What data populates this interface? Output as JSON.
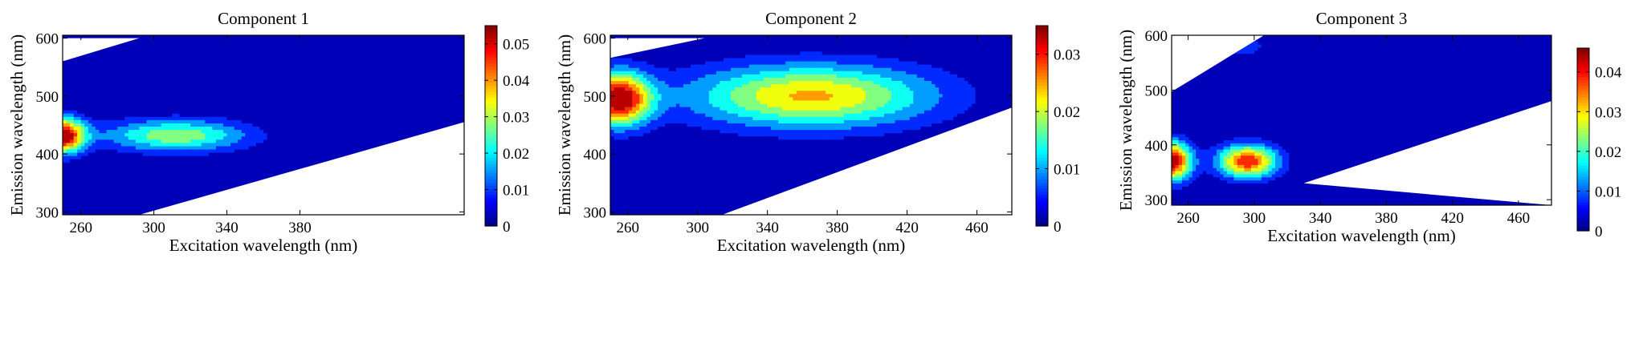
{
  "chart_data": [
    {
      "type": "heatmap",
      "title": "Component 1",
      "xlabel": "Excitation wavelength (nm)",
      "ylabel": "Emission wavelength (nm)",
      "xlim": [
        250,
        470
      ],
      "ylim": [
        295,
        605
      ],
      "xticks": [
        260,
        300,
        340,
        380
      ],
      "yticks": [
        300,
        400,
        500,
        600
      ],
      "colorbar": {
        "min": 0,
        "max": 0.055,
        "ticks": [
          0,
          0.01,
          0.02,
          0.03,
          0.04,
          0.05
        ],
        "tick_labels": [
          "0",
          "0.01",
          "0.02",
          "0.03",
          "0.04",
          "0.05"
        ]
      },
      "peaks": [
        {
          "ex": 250,
          "em": 432,
          "value": 0.055,
          "sx": 12,
          "sy": 30
        },
        {
          "ex": 312,
          "em": 432,
          "value": 0.029,
          "sx": 40,
          "sy": 28
        }
      ]
    },
    {
      "type": "heatmap",
      "title": "Component 2",
      "xlabel": "Excitation wavelength (nm)",
      "ylabel": "Emission wavelength (nm)",
      "xlim": [
        250,
        480
      ],
      "ylim": [
        295,
        605
      ],
      "xticks": [
        260,
        300,
        340,
        380,
        420,
        460
      ],
      "yticks": [
        300,
        400,
        500,
        600
      ],
      "colorbar": {
        "min": 0,
        "max": 0.035,
        "ticks": [
          0,
          0.01,
          0.02,
          0.03
        ],
        "tick_labels": [
          "0",
          "0.01",
          "0.02",
          "0.03"
        ]
      },
      "peaks": [
        {
          "ex": 255,
          "em": 495,
          "value": 0.035,
          "sx": 18,
          "sy": 45
        },
        {
          "ex": 365,
          "em": 500,
          "value": 0.024,
          "sx": 70,
          "sy": 55
        }
      ]
    },
    {
      "type": "heatmap",
      "title": "Component 3",
      "xlabel": "Excitation wavelength (nm)",
      "ylabel": "Emission wavelength (nm)",
      "xlim": [
        250,
        480
      ],
      "ylim": [
        290,
        600
      ],
      "xticks": [
        260,
        300,
        340,
        380,
        420,
        460
      ],
      "yticks": [
        300,
        400,
        500,
        600
      ],
      "colorbar": {
        "min": 0,
        "max": 0.046,
        "ticks": [
          0,
          0.01,
          0.02,
          0.03,
          0.04
        ],
        "tick_labels": [
          "0",
          "0.01",
          "0.02",
          "0.03",
          "0.04"
        ]
      },
      "peaks": [
        {
          "ex": 250,
          "em": 370,
          "value": 0.046,
          "sx": 12,
          "sy": 35
        },
        {
          "ex": 296,
          "em": 370,
          "value": 0.04,
          "sx": 18,
          "sy": 30
        },
        {
          "ex": 290,
          "em": 580,
          "value": 0.009,
          "sx": 18,
          "sy": 22
        }
      ]
    }
  ]
}
